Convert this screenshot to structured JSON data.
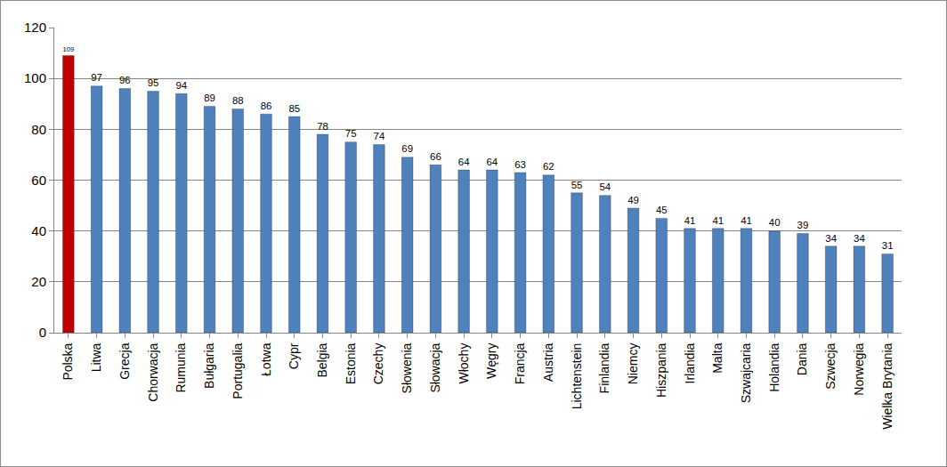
{
  "chart_data": {
    "type": "bar",
    "categories": [
      "Polska",
      "Litwa",
      "Grecja",
      "Chorwacja",
      "Rumunia",
      "Bułgaria",
      "Portugalia",
      "Łotwa",
      "Cypr",
      "Belgia",
      "Estonia",
      "Czechy",
      "Słowenia",
      "Słowacja",
      "Włochy",
      "Węgry",
      "Francja",
      "Austria",
      "Lichtenstein",
      "Finlandia",
      "Niemcy",
      "Hiszpania",
      "Irlandia",
      "Malta",
      "Szwajcaria",
      "Holandia",
      "Dania",
      "Szwecja",
      "Norwegia",
      "Wielka Brytania"
    ],
    "values": [
      109,
      97,
      96,
      95,
      94,
      89,
      88,
      86,
      85,
      78,
      75,
      74,
      69,
      66,
      64,
      64,
      63,
      62,
      55,
      54,
      49,
      45,
      41,
      41,
      41,
      40,
      39,
      34,
      34,
      31
    ],
    "colors": [
      "#c00000",
      "#4f81bd",
      "#4f81bd",
      "#4f81bd",
      "#4f81bd",
      "#4f81bd",
      "#4f81bd",
      "#4f81bd",
      "#4f81bd",
      "#4f81bd",
      "#4f81bd",
      "#4f81bd",
      "#4f81bd",
      "#4f81bd",
      "#4f81bd",
      "#4f81bd",
      "#4f81bd",
      "#4f81bd",
      "#4f81bd",
      "#4f81bd",
      "#4f81bd",
      "#4f81bd",
      "#4f81bd",
      "#4f81bd",
      "#4f81bd",
      "#4f81bd",
      "#4f81bd",
      "#4f81bd",
      "#4f81bd",
      "#4f81bd"
    ],
    "ylim": [
      0,
      120
    ],
    "yticks": [
      0,
      20,
      40,
      60,
      80,
      100,
      120
    ],
    "grid": true,
    "data_labels": true
  }
}
